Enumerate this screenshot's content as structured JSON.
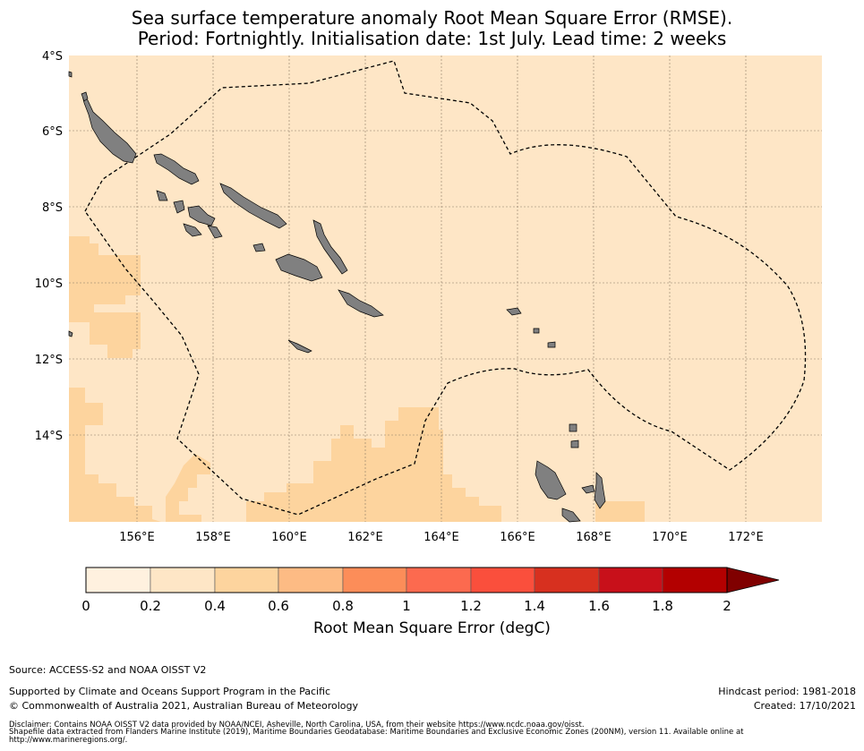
{
  "title": {
    "line1": "Sea surface temperature anomaly Root Mean Square Error (RMSE).",
    "line2": "Period: Fortnightly. Initialisation date: 1st July. Lead time: 2 weeks"
  },
  "map": {
    "lat_labels": [
      "4°S",
      "6°S",
      "8°S",
      "10°S",
      "12°S",
      "14°S"
    ],
    "lon_labels": [
      "156°E",
      "158°E",
      "160°E",
      "162°E",
      "164°E",
      "166°E",
      "168°E",
      "170°E",
      "172°E"
    ],
    "ocean_color": "#fee6c6",
    "anomaly_color": "#fdd49e",
    "land_color": "#808080"
  },
  "colorbar": {
    "ticks": [
      "0",
      "0.2",
      "0.4",
      "0.6",
      "0.8",
      "1",
      "1.2",
      "1.4",
      "1.6",
      "1.8",
      "2"
    ],
    "colors": [
      "#fff1df",
      "#fee6c6",
      "#fdd49e",
      "#fdbb84",
      "#fc8d59",
      "#fc6a4f",
      "#fa4f3c",
      "#d7301f",
      "#c8101a",
      "#b30000",
      "#800000"
    ],
    "label": "Root Mean Square Error (degC)"
  },
  "footer": {
    "source": "Source: ACCESS-S2 and NOAA OISST V2",
    "supported": "Supported by Climate and Oceans Support Program in the Pacific",
    "copyright": "© Commonwealth of Australia 2021, Australian Bureau of Meteorology",
    "hindcast": "Hindcast period: 1981-2018",
    "created": "Created: 17/10/2021",
    "disclaimer1": "Disclaimer: Contains NOAA OISST V2 data provided by NOAA/NCEI, Asheville, North Carolina, USA, from their website https://www.ncdc.noaa.gov/oisst.",
    "disclaimer2": "Shapefile data extracted from Flanders Marine Institute (2019), Maritime Boundaries Geodatabase: Maritime Boundaries and Exclusive Economic Zones (200NM), version 11. Available online at",
    "disclaimer3": "http://www.marineregions.org/."
  }
}
